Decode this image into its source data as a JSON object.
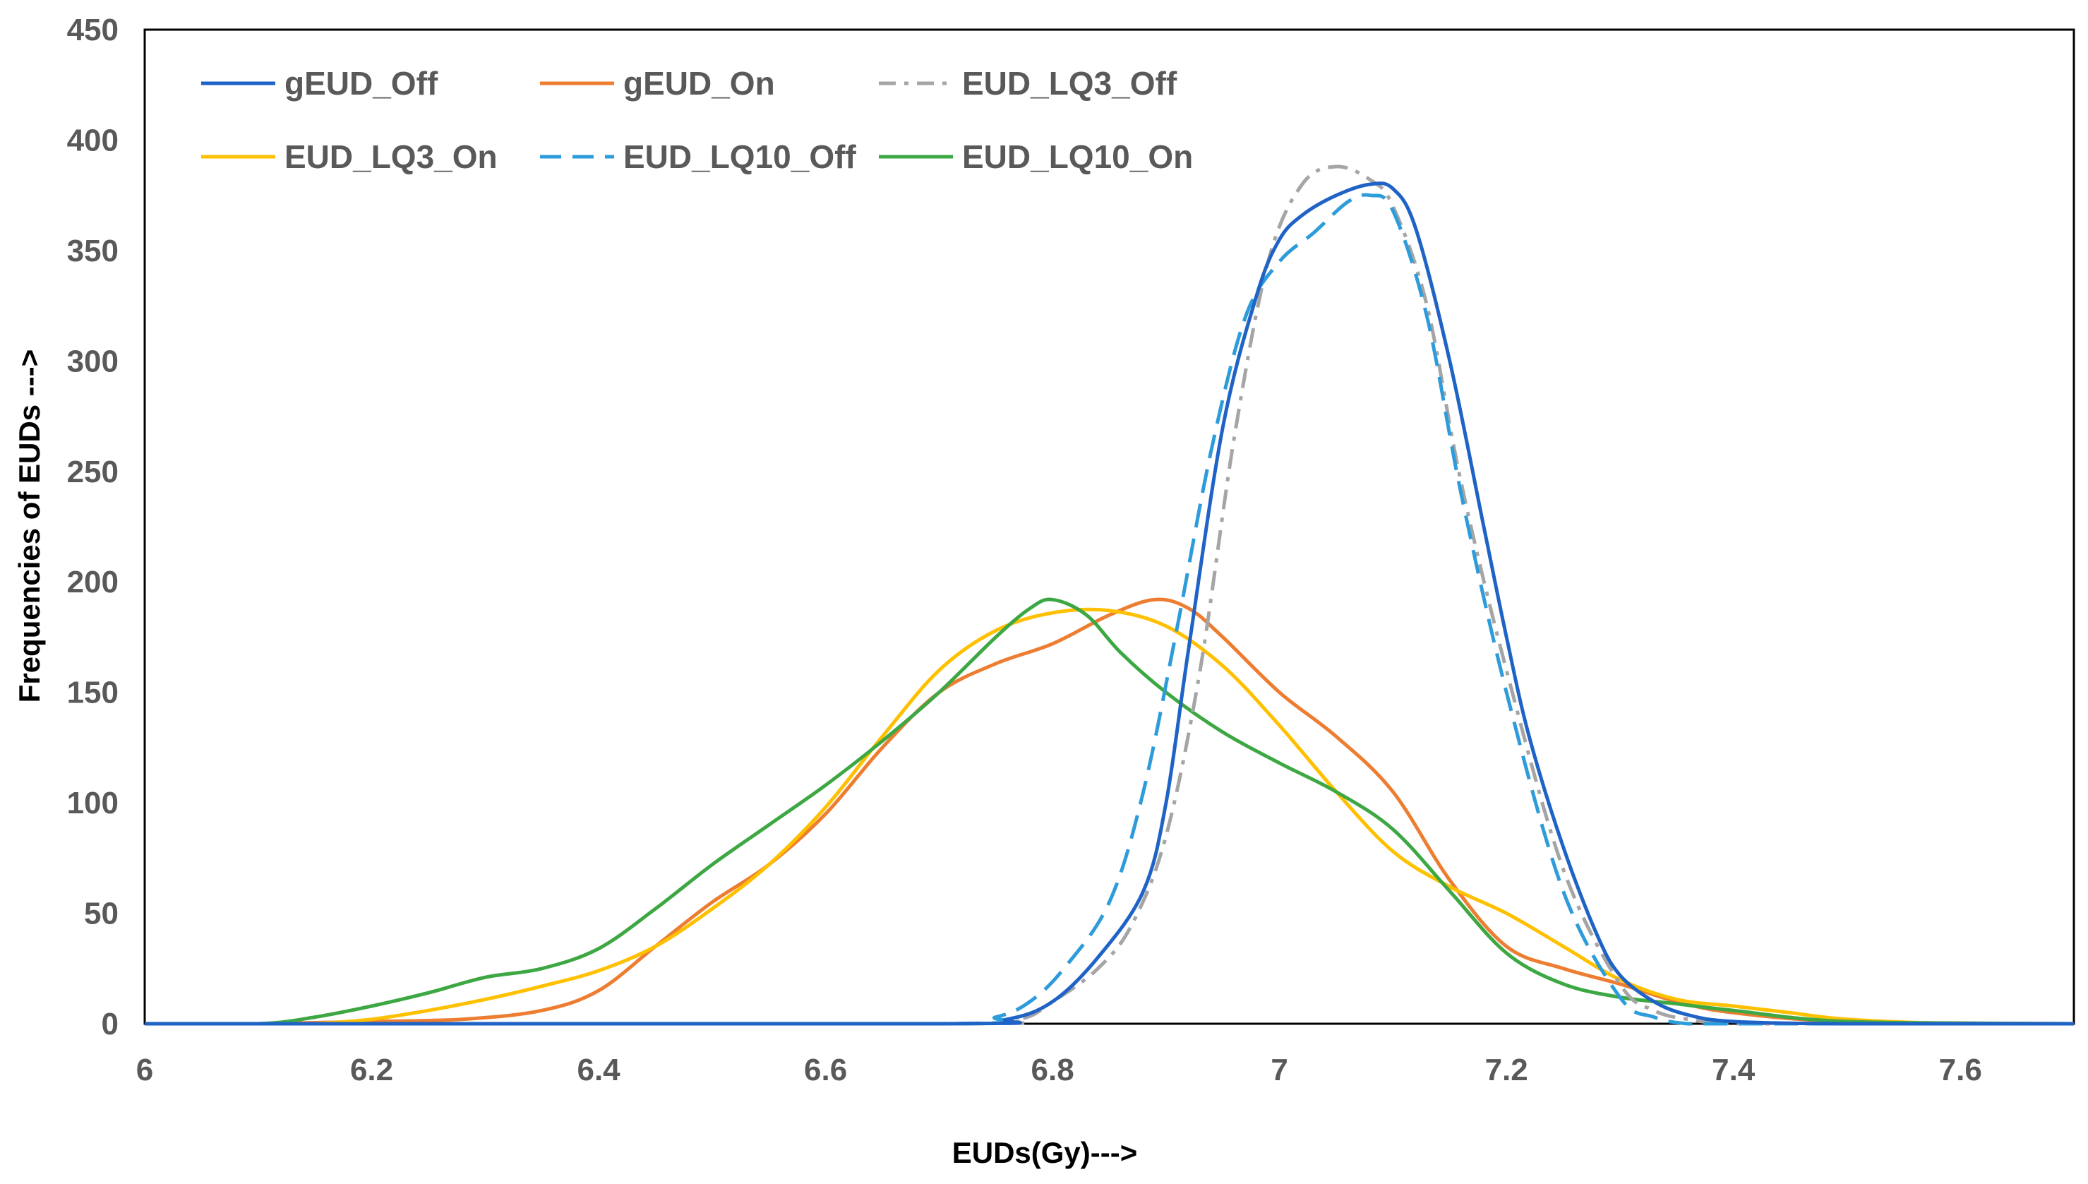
{
  "chart_data": {
    "type": "line",
    "title": "",
    "xlabel": "EUDs(Gy)--->",
    "ylabel": "Frequencies of EUDs --->",
    "xlim": [
      6,
      7.7
    ],
    "ylim": [
      0,
      450
    ],
    "x_ticks": [
      "6",
      "6.2",
      "6.4",
      "6.6",
      "6.8",
      "7",
      "7.2",
      "7.4",
      "7.6"
    ],
    "y_ticks": [
      "0",
      "50",
      "100",
      "150",
      "200",
      "250",
      "300",
      "350",
      "400",
      "450"
    ],
    "grid": false,
    "legend_position": "top-left",
    "series": [
      {
        "name": "gEUD_Off",
        "color": "#1f63c6",
        "dash": "solid",
        "x": [
          6.0,
          6.7,
          6.76,
          6.8,
          6.84,
          6.88,
          6.9,
          6.92,
          6.95,
          6.98,
          7.0,
          7.02,
          7.05,
          7.08,
          7.1,
          7.12,
          7.15,
          7.18,
          7.2,
          7.22,
          7.25,
          7.28,
          7.3,
          7.33,
          7.36,
          7.4,
          7.5,
          7.7
        ],
        "y": [
          0,
          0,
          2,
          10,
          30,
          60,
          100,
          170,
          270,
          330,
          355,
          366,
          375,
          380,
          378,
          360,
          300,
          225,
          175,
          130,
          80,
          40,
          22,
          10,
          4,
          1,
          0,
          0
        ]
      },
      {
        "name": "gEUD_On",
        "color": "#ed7d31",
        "dash": "solid",
        "x": [
          6.1,
          6.2,
          6.28,
          6.35,
          6.4,
          6.45,
          6.5,
          6.55,
          6.6,
          6.65,
          6.7,
          6.75,
          6.8,
          6.85,
          6.89,
          6.92,
          6.95,
          7.0,
          7.05,
          7.1,
          7.15,
          7.2,
          7.25,
          7.3,
          7.35,
          7.4,
          7.5,
          7.7
        ],
        "y": [
          0,
          1,
          2,
          6,
          15,
          35,
          55,
          72,
          95,
          125,
          150,
          163,
          172,
          185,
          192,
          188,
          175,
          150,
          130,
          105,
          65,
          35,
          25,
          18,
          10,
          5,
          1,
          0
        ]
      },
      {
        "name": "EUD_LQ3_Off",
        "color": "#a5a5a5",
        "dash": "dashdot",
        "x": [
          6.0,
          6.7,
          6.77,
          6.8,
          6.84,
          6.87,
          6.9,
          6.93,
          6.96,
          6.99,
          7.02,
          7.05,
          7.08,
          7.1,
          7.13,
          7.16,
          7.2,
          7.25,
          7.3,
          7.33,
          7.36,
          7.4,
          7.5,
          7.7
        ],
        "y": [
          0,
          0,
          2,
          10,
          25,
          45,
          85,
          160,
          265,
          345,
          380,
          388,
          382,
          370,
          325,
          245,
          160,
          70,
          18,
          6,
          2,
          0,
          0,
          0
        ]
      },
      {
        "name": "EUD_LQ3_On",
        "color": "#ffc000",
        "dash": "solid",
        "x": [
          6.15,
          6.2,
          6.25,
          6.3,
          6.35,
          6.4,
          6.45,
          6.5,
          6.55,
          6.6,
          6.65,
          6.7,
          6.75,
          6.8,
          6.85,
          6.9,
          6.95,
          7.0,
          7.05,
          7.1,
          7.15,
          7.2,
          7.25,
          7.3,
          7.35,
          7.4,
          7.45,
          7.5,
          7.6,
          7.7
        ],
        "y": [
          0,
          2,
          6,
          11,
          17,
          24,
          35,
          52,
          72,
          98,
          130,
          160,
          178,
          186,
          187,
          180,
          162,
          135,
          105,
          78,
          62,
          50,
          35,
          20,
          11,
          8,
          5,
          2,
          0,
          0
        ]
      },
      {
        "name": "EUD_LQ10_Off",
        "color": "#2e9cdb",
        "dash": "dashed",
        "x": [
          6.0,
          6.7,
          6.75,
          6.78,
          6.81,
          6.85,
          6.88,
          6.91,
          6.94,
          6.97,
          7.0,
          7.03,
          7.06,
          7.08,
          7.1,
          7.13,
          7.16,
          7.2,
          7.25,
          7.3,
          7.33,
          7.36,
          7.4,
          7.5,
          7.7
        ],
        "y": [
          0,
          0,
          3,
          10,
          25,
          55,
          105,
          180,
          260,
          320,
          345,
          358,
          372,
          375,
          368,
          320,
          240,
          150,
          60,
          12,
          3,
          0,
          0,
          0,
          0
        ]
      },
      {
        "name": "EUD_LQ10_On",
        "color": "#3da843",
        "dash": "solid",
        "x": [
          6.0,
          6.1,
          6.15,
          6.2,
          6.25,
          6.3,
          6.35,
          6.4,
          6.45,
          6.5,
          6.55,
          6.6,
          6.65,
          6.7,
          6.75,
          6.78,
          6.8,
          6.83,
          6.86,
          6.9,
          6.95,
          7.0,
          7.05,
          7.1,
          7.15,
          7.2,
          7.25,
          7.3,
          7.35,
          7.4,
          7.5,
          7.7
        ],
        "y": [
          0,
          0,
          3,
          8,
          14,
          21,
          25,
          34,
          52,
          72,
          90,
          108,
          128,
          150,
          175,
          188,
          192,
          185,
          168,
          150,
          132,
          118,
          105,
          88,
          60,
          32,
          18,
          12,
          9,
          6,
          1,
          0
        ]
      }
    ]
  }
}
